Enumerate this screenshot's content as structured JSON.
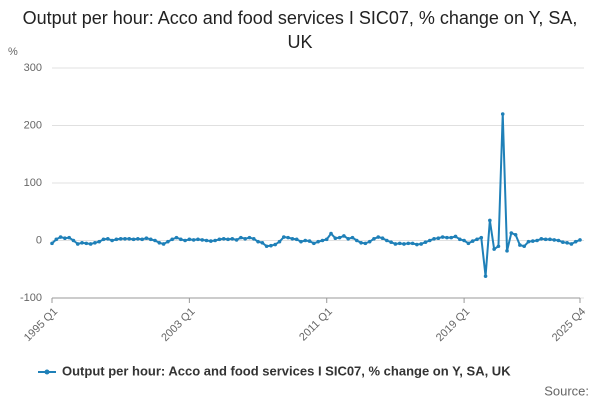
{
  "chart_data": {
    "type": "line",
    "title": "Output per hour: Acco and food services I SIC07, % change on Y, SA, UK",
    "y_unit": "%",
    "source": "Source:",
    "categories": [
      "1995 Q1",
      null,
      null,
      null,
      null,
      null,
      null,
      null,
      null,
      null,
      null,
      null,
      null,
      null,
      null,
      null,
      null,
      null,
      null,
      null,
      null,
      null,
      null,
      null,
      null,
      null,
      null,
      null,
      null,
      null,
      null,
      null,
      "2003 Q1",
      null,
      null,
      null,
      null,
      null,
      null,
      null,
      null,
      null,
      null,
      null,
      null,
      null,
      null,
      null,
      null,
      null,
      null,
      null,
      null,
      null,
      null,
      null,
      null,
      null,
      null,
      null,
      null,
      null,
      null,
      null,
      "2011 Q1",
      null,
      null,
      null,
      null,
      null,
      null,
      null,
      null,
      null,
      null,
      null,
      null,
      null,
      null,
      null,
      null,
      null,
      null,
      null,
      null,
      null,
      null,
      null,
      null,
      null,
      null,
      null,
      null,
      null,
      null,
      null,
      "2019 Q1",
      null,
      null,
      null,
      null,
      null,
      null,
      null,
      null,
      null,
      null,
      null,
      null,
      null,
      null,
      null,
      null,
      null,
      null,
      null,
      null,
      null,
      null,
      null,
      null,
      null,
      null,
      "2025 Q4"
    ],
    "series": [
      {
        "name": "Output per hour: Acco and food services I SIC07, % change on Y, SA, UK",
        "color": "#1f80b8",
        "values": [
          -5,
          2,
          6,
          4,
          5,
          0,
          -6,
          -4,
          -5,
          -6,
          -4,
          -2,
          2,
          3,
          0,
          2,
          3,
          3,
          3,
          2,
          3,
          2,
          4,
          2,
          0,
          -4,
          -6,
          -2,
          2,
          5,
          2,
          0,
          2,
          1,
          2,
          1,
          0,
          -1,
          0,
          2,
          3,
          2,
          3,
          1,
          5,
          3,
          5,
          3,
          -2,
          -4,
          -10,
          -9,
          -7,
          -2,
          6,
          5,
          3,
          2,
          -2,
          0,
          -1,
          -5,
          -2,
          0,
          2,
          12,
          4,
          5,
          8,
          3,
          5,
          0,
          -4,
          -5,
          -2,
          3,
          6,
          4,
          0,
          -3,
          -6,
          -5,
          -6,
          -5,
          -5,
          -7,
          -6,
          -3,
          0,
          3,
          4,
          6,
          5,
          5,
          7,
          2,
          0,
          -5,
          -1,
          2,
          5,
          -62,
          35,
          -15,
          -10,
          220,
          -18,
          13,
          10,
          -8,
          -10,
          -2,
          -1,
          0,
          3,
          2,
          2,
          1,
          0,
          -3,
          -4,
          -6,
          -2,
          1
        ]
      }
    ],
    "ylim": [
      -100,
      300
    ],
    "yticks": [
      -100,
      0,
      100,
      200,
      300
    ],
    "grid": true
  }
}
